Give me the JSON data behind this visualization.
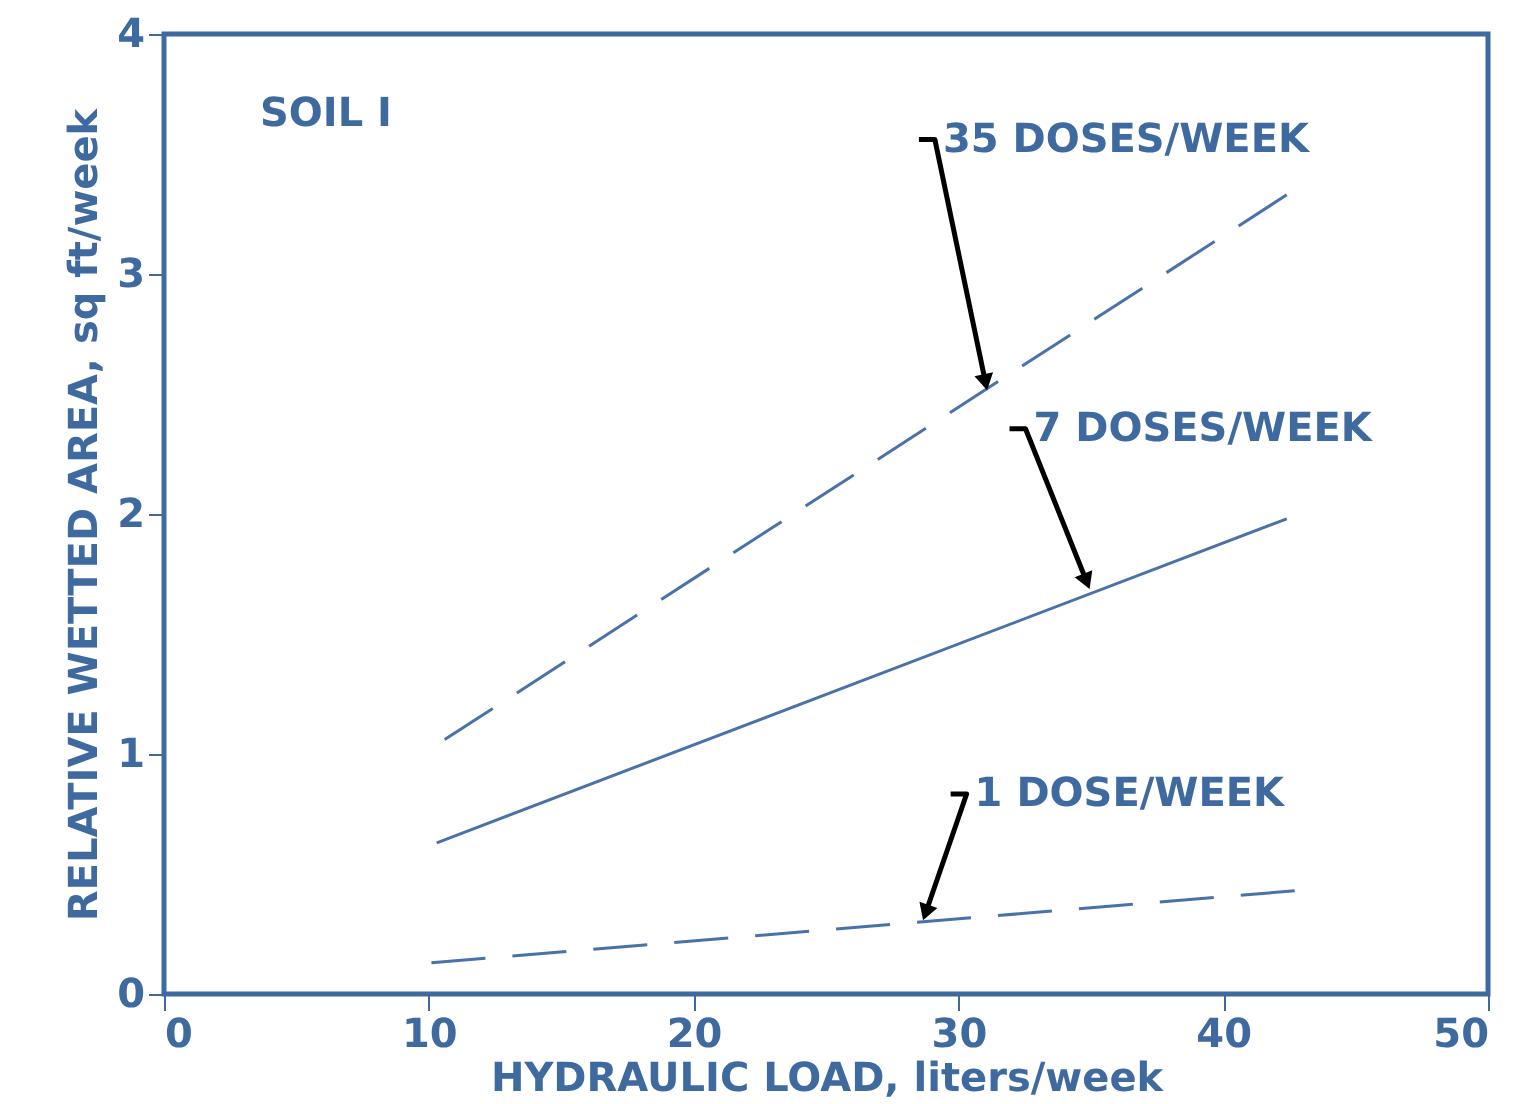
{
  "chart_data": {
    "type": "line",
    "xlabel": "HYDRAULIC LOAD, liters/week",
    "ylabel": "RELATIVE WETTED AREA, sq ft/week",
    "xlim": [
      0,
      50
    ],
    "xticks": [
      0,
      10,
      20,
      30,
      40,
      50
    ],
    "ylim": [
      0,
      4
    ],
    "yticks": [
      0,
      1,
      2,
      3,
      4
    ],
    "grid": false,
    "series": [
      {
        "color": "#4a72a8",
        "line_style": "dashed",
        "x": [
          10.6,
          42.4
        ],
        "values": [
          1.06,
          3.33
        ]
      },
      {
        "color": "#4a72a8",
        "line_style": "solid",
        "x": [
          10.3,
          42.4
        ],
        "values": [
          0.63,
          1.98
        ]
      },
      {
        "color": "#4a72a8",
        "line_style": "dashed",
        "x": [
          10.1,
          42.7
        ],
        "values": [
          0.13,
          0.43
        ]
      }
    ],
    "annotations": [
      "SOIL I",
      {
        "text": "35 DOSES/WEEK",
        "x": 31.0,
        "y": 2.56
      },
      {
        "text": "7 DOSES/WEEK",
        "x": 34.8,
        "y": 1.73
      },
      {
        "text": "1 DOSE/WEEK",
        "x": 28.8,
        "y": 0.35
      }
    ]
  }
}
